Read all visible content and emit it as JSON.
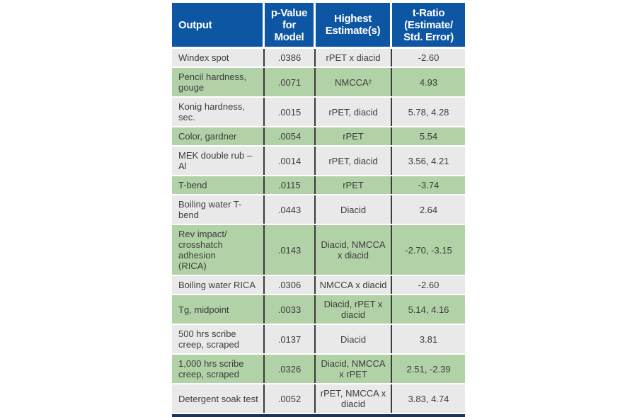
{
  "colors": {
    "header_bg": "#0d56a3",
    "header_text": "#ffffff",
    "row_gray": "#e9e9e9",
    "row_green": "#b1d1a6",
    "divider": "#3a3a3a",
    "bottom_bar": "#1a3356",
    "body_text": "#3d3d3d"
  },
  "chart_data": {
    "type": "table",
    "columns": [
      "Output",
      "p-Value\nfor\nModel",
      "Highest\nEstimate(s)",
      "t-Ratio\n(Estimate/\nStd. Error)"
    ],
    "rows": [
      [
        "Windex spot",
        ".0386",
        "rPET x diacid",
        "-2.60"
      ],
      [
        "Pencil hardness,\ngouge",
        ".0071",
        "NMCCA²",
        "4.93"
      ],
      [
        "Konig hardness,\nsec.",
        ".0015",
        "rPET, diacid",
        "5.78, 4.28"
      ],
      [
        "Color, gardner",
        ".0054",
        "rPET",
        "5.54"
      ],
      [
        "MEK double rub – Al",
        ".0014",
        "rPET, diacid",
        "3.56, 4.21"
      ],
      [
        "T-bend",
        ".0115",
        "rPET",
        "-3.74"
      ],
      [
        "Boiling water T-bend",
        ".0443",
        "Diacid",
        "2.64"
      ],
      [
        "Rev impact/\ncrosshatch adhesion\n(RICA)",
        ".0143",
        "Diacid, NMCCA\nx diacid",
        "-2.70, -3.15"
      ],
      [
        "Boiling water RICA",
        ".0306",
        "NMCCA x diacid",
        "-2.60"
      ],
      [
        "Tg, midpoint",
        ".0033",
        "Diacid, rPET x\ndiacid",
        "5.14, 4.16"
      ],
      [
        "500 hrs scribe\ncreep, scraped",
        ".0137",
        "Diacid",
        "3.81"
      ],
      [
        "1,000 hrs scribe\ncreep, scraped",
        ".0326",
        "Diacid, NMCCA\nx rPET",
        "2.51, -2.39"
      ],
      [
        "Detergent soak test",
        ".0052",
        "rPET, NMCCA x\ndiacid",
        "3.83, 4.74"
      ]
    ]
  }
}
